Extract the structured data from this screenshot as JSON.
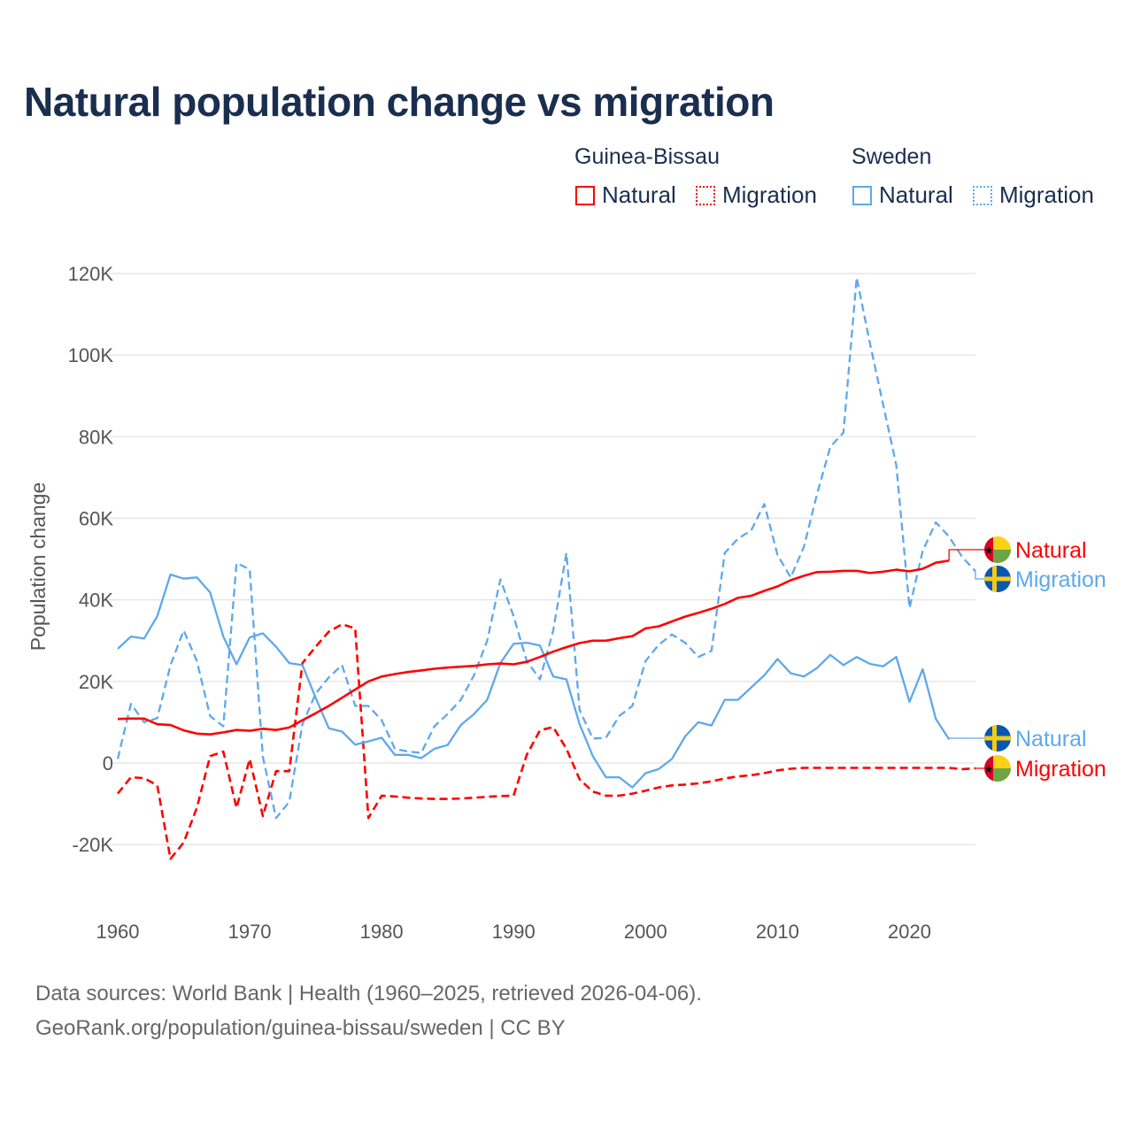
{
  "title": "Natural population change vs migration",
  "legend": {
    "groups": [
      {
        "country": "Guinea-Bissau",
        "items": [
          {
            "label": "Natural",
            "style": "solid"
          },
          {
            "label": "Migration",
            "style": "dotted"
          }
        ],
        "color": "#ff0000"
      },
      {
        "country": "Sweden",
        "items": [
          {
            "label": "Natural",
            "style": "solid"
          },
          {
            "label": "Migration",
            "style": "dotted"
          }
        ],
        "color": "#5ea8ec"
      }
    ]
  },
  "footer": {
    "line1": "Data sources: World Bank | Health (1960–2025, retrieved 2026-04-06).",
    "line2": "GeoRank.org/population/guinea-bissau/sweden | CC BY"
  },
  "chart_data": {
    "type": "line",
    "title": "Natural population change vs migration",
    "xlabel": "",
    "ylabel": "Population change",
    "xlim": [
      1960,
      2025
    ],
    "ylim": [
      -20000,
      120000
    ],
    "yticks": [
      -20000,
      0,
      20000,
      40000,
      60000,
      80000,
      100000,
      120000
    ],
    "ytick_labels": [
      "-20K",
      "0",
      "20K",
      "40K",
      "60K",
      "80K",
      "100K",
      "120K"
    ],
    "xticks": [
      1960,
      1970,
      1980,
      1990,
      2000,
      2010,
      2020
    ],
    "xtick_labels": [
      "1960",
      "1970",
      "1980",
      "1990",
      "2000",
      "2010",
      "2020"
    ],
    "grid": true,
    "legend_position": "top-right",
    "series": [
      {
        "name": "Guinea-Bissau Natural",
        "end_label": "Natural",
        "country": "Guinea-Bissau",
        "color": "#ff0000",
        "dash": false,
        "start": 1960,
        "values": [
          10800,
          10900,
          10900,
          9500,
          9300,
          8000,
          7200,
          7000,
          7500,
          8100,
          7900,
          8400,
          8100,
          8700,
          10500,
          12200,
          14000,
          16000,
          18000,
          20000,
          21200,
          21800,
          22300,
          22700,
          23100,
          23400,
          23600,
          23800,
          24200,
          24400,
          24200,
          24800,
          26000,
          27300,
          28400,
          29400,
          30000,
          30000,
          30600,
          31100,
          33000,
          33500,
          34700,
          35900,
          36800,
          37800,
          39000,
          40500,
          41000,
          42200,
          43300,
          44800,
          45900,
          46800,
          46900,
          47100,
          47100,
          46600,
          46900,
          47400,
          47000,
          47600,
          49100,
          49600
        ]
      },
      {
        "name": "Guinea-Bissau Migration",
        "end_label": "Migration",
        "country": "Guinea-Bissau",
        "color": "#ff0000",
        "dash": true,
        "start": 1960,
        "values": [
          -7500,
          -3500,
          -3700,
          -5500,
          -23500,
          -19500,
          -11000,
          1700,
          2800,
          -11000,
          1000,
          -13000,
          -2000,
          -2000,
          24500,
          28500,
          32200,
          34000,
          33000,
          -13500,
          -8000,
          -8200,
          -8500,
          -8700,
          -8800,
          -8800,
          -8700,
          -8500,
          -8300,
          -8100,
          -8000,
          2000,
          8000,
          8800,
          3500,
          -4000,
          -7000,
          -8000,
          -8000,
          -7500,
          -6800,
          -6000,
          -5500,
          -5300,
          -5000,
          -4500,
          -3800,
          -3300,
          -3000,
          -2500,
          -1800,
          -1400,
          -1200,
          -1200,
          -1200,
          -1200,
          -1200,
          -1200,
          -1200,
          -1200,
          -1200,
          -1200,
          -1200,
          -1200,
          -1500,
          -1300
        ]
      },
      {
        "name": "Sweden Natural",
        "end_label": "Natural",
        "country": "Sweden",
        "color": "#5ea8ec",
        "dash": false,
        "start": 1960,
        "values": [
          28000,
          31000,
          30500,
          36000,
          46200,
          45200,
          45500,
          41800,
          31000,
          24200,
          30800,
          31800,
          28500,
          24500,
          24000,
          16000,
          8500,
          7700,
          4500,
          5300,
          6200,
          2000,
          2000,
          1200,
          3500,
          4400,
          9300,
          12000,
          15500,
          24500,
          29200,
          29500,
          28800,
          21200,
          20500,
          9500,
          1700,
          -3500,
          -3500,
          -6000,
          -2500,
          -1500,
          1000,
          6500,
          10000,
          9200,
          15500,
          15500,
          18500,
          21500,
          25500,
          22000,
          21200,
          23300,
          26500,
          24000,
          26000,
          24300,
          23700,
          26000,
          15000,
          23000,
          10800,
          5800
        ]
      },
      {
        "name": "Sweden Migration",
        "end_label": "Migration",
        "country": "Sweden",
        "color": "#5ea8ec",
        "dash": true,
        "start": 1960,
        "values": [
          1000,
          14500,
          10000,
          11000,
          24000,
          32500,
          25000,
          11500,
          9000,
          49000,
          47500,
          1500,
          -13500,
          -9500,
          9500,
          17000,
          21000,
          24000,
          14000,
          14000,
          10500,
          3500,
          2800,
          2500,
          9000,
          12000,
          15500,
          21500,
          30000,
          45000,
          36000,
          25000,
          20500,
          32500,
          51500,
          13000,
          6000,
          6200,
          11500,
          14000,
          25000,
          29000,
          31500,
          29500,
          26000,
          27500,
          51500,
          55000,
          57000,
          63500,
          51000,
          45500,
          53000,
          66000,
          77500,
          81000,
          119000,
          103000,
          88000,
          73000,
          38000,
          52000,
          59000,
          55500,
          50500,
          47000
        ]
      }
    ]
  }
}
